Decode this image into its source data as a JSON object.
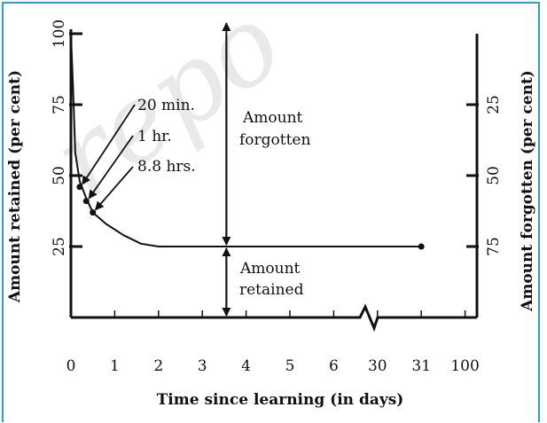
{
  "chart_data": {
    "type": "line",
    "xlabel": "Time since learning (in days)",
    "ylabel": "Amount retained (per cent)",
    "y2label": "Amount forgotten (per cent)",
    "x_tick_labels": [
      "0",
      "1",
      "2",
      "3",
      "4",
      "5",
      "6",
      "30",
      "31",
      "100"
    ],
    "y_ticks": [
      25,
      50,
      75,
      100
    ],
    "y_tick_labels": [
      "25",
      "50",
      "75",
      "100"
    ],
    "y2_ticks": [
      25,
      50,
      75
    ],
    "y2_tick_labels": [
      "25",
      "50",
      "75"
    ],
    "ylim": [
      0,
      100
    ],
    "axis_break_between": [
      "6",
      "30"
    ],
    "series": [
      {
        "x": [
          0,
          0.05,
          0.1,
          0.2,
          0.35,
          0.5,
          0.8,
          1.2,
          1.6,
          2.0,
          3.0,
          4.0,
          5.0,
          6.0,
          30,
          31
        ],
        "values": [
          100,
          80,
          58,
          48,
          42,
          37,
          33,
          29,
          26,
          25,
          25,
          25,
          25,
          25,
          25,
          25
        ]
      }
    ],
    "markers": [
      {
        "x": 0.2,
        "y": 46
      },
      {
        "x": 0.35,
        "y": 41
      },
      {
        "x": 0.5,
        "y": 37
      },
      {
        "x": 31,
        "y": 25
      }
    ],
    "annotations": [
      {
        "id": "twenty-min",
        "text": "20 min."
      },
      {
        "id": "one-hr",
        "text": "1 hr."
      },
      {
        "id": "eight-hrs",
        "text": "8.8 hrs."
      },
      {
        "id": "forgotten-1",
        "text": "Amount"
      },
      {
        "id": "forgotten-2",
        "text": "forgotten"
      },
      {
        "id": "retained-1",
        "text": "Amount"
      },
      {
        "id": "retained-2",
        "text": "retained"
      }
    ],
    "watermark_text": "repo"
  }
}
